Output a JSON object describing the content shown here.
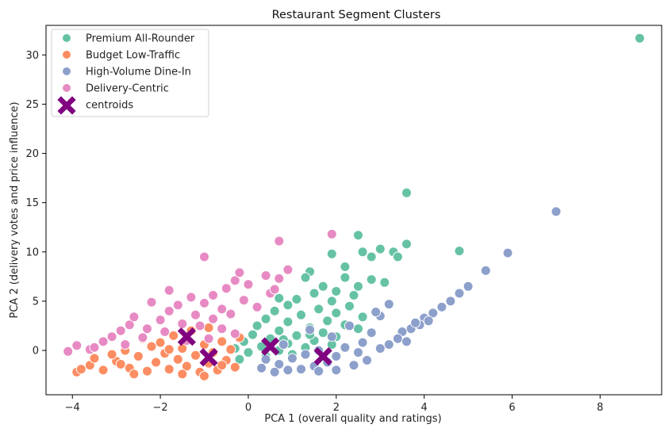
{
  "chart_data": {
    "type": "scatter",
    "title": "Restaurant Segment Clusters",
    "xlabel": "PCA 1 (overall quality and ratings)",
    "ylabel": "PCA 2 (delivery votes and price influence)",
    "xlim": [
      -4.6,
      9.4
    ],
    "ylim": [
      -4.5,
      33.0
    ],
    "x_ticks": [
      -4,
      -2,
      0,
      2,
      4,
      6,
      8
    ],
    "y_ticks": [
      0,
      5,
      10,
      15,
      20,
      25,
      30
    ],
    "grid": false,
    "legend_position": "top-left",
    "series": [
      {
        "name": "Premium All-Rounder",
        "color": "#66c2a5",
        "points": [
          [
            8.9,
            31.7
          ],
          [
            3.6,
            16.0
          ],
          [
            2.5,
            11.7
          ],
          [
            3.6,
            10.8
          ],
          [
            4.8,
            10.1
          ],
          [
            2.6,
            10.0
          ],
          [
            3.0,
            10.3
          ],
          [
            3.3,
            10.0
          ],
          [
            1.9,
            9.8
          ],
          [
            2.8,
            9.5
          ],
          [
            3.4,
            9.5
          ],
          [
            2.2,
            8.5
          ],
          [
            1.4,
            8.0
          ],
          [
            1.3,
            7.4
          ],
          [
            2.2,
            7.4
          ],
          [
            2.8,
            7.2
          ],
          [
            3.1,
            6.9
          ],
          [
            2.5,
            6.5
          ],
          [
            1.7,
            6.5
          ],
          [
            2.0,
            6.0
          ],
          [
            1.5,
            5.8
          ],
          [
            2.4,
            5.6
          ],
          [
            1.1,
            5.2
          ],
          [
            0.7,
            5.3
          ],
          [
            1.9,
            5.0
          ],
          [
            2.3,
            4.5
          ],
          [
            0.9,
            4.6
          ],
          [
            1.6,
            4.2
          ],
          [
            0.6,
            4.0
          ],
          [
            2.0,
            3.8
          ],
          [
            1.2,
            3.6
          ],
          [
            2.6,
            3.4
          ],
          [
            0.4,
            3.2
          ],
          [
            1.8,
            3.0
          ],
          [
            0.9,
            2.9
          ],
          [
            2.2,
            2.6
          ],
          [
            0.2,
            2.5
          ],
          [
            1.4,
            2.3
          ],
          [
            2.5,
            2.2
          ],
          [
            0.7,
            2.0
          ],
          [
            1.7,
            1.8
          ],
          [
            0.1,
            1.6
          ],
          [
            1.1,
            1.5
          ],
          [
            2.0,
            1.4
          ],
          [
            0.5,
            1.2
          ],
          [
            1.5,
            1.0
          ],
          [
            -0.1,
            0.9
          ],
          [
            0.9,
            0.7
          ],
          [
            1.9,
            0.6
          ],
          [
            0.3,
            0.4
          ],
          [
            1.3,
            0.3
          ],
          [
            -0.3,
            0.2
          ],
          [
            0.7,
            0.0
          ],
          [
            1.6,
            -0.1
          ],
          [
            0.0,
            -0.2
          ],
          [
            1.0,
            -0.4
          ],
          [
            0.4,
            -0.6
          ],
          [
            -0.2,
            -0.9
          ],
          [
            1.4,
            1.6
          ],
          [
            0.8,
            1.1
          ]
        ]
      },
      {
        "name": "Budget Low-Traffic",
        "color": "#fc8d62",
        "points": [
          [
            -3.9,
            -2.2
          ],
          [
            -3.6,
            -1.5
          ],
          [
            -3.3,
            -2.0
          ],
          [
            -3.0,
            -1.1
          ],
          [
            -2.7,
            -1.8
          ],
          [
            -2.5,
            -0.6
          ],
          [
            -2.3,
            -2.1
          ],
          [
            -2.1,
            -1.2
          ],
          [
            -1.9,
            -0.3
          ],
          [
            -1.8,
            -1.9
          ],
          [
            -1.6,
            -0.9
          ],
          [
            -1.5,
            0.2
          ],
          [
            -1.4,
            -1.6
          ],
          [
            -1.2,
            -0.5
          ],
          [
            -1.1,
            -2.2
          ],
          [
            -1.0,
            0.6
          ],
          [
            -0.9,
            -1.3
          ],
          [
            -0.8,
            -0.2
          ],
          [
            -0.7,
            -2.0
          ],
          [
            -0.6,
            0.9
          ],
          [
            -0.5,
            -1.0
          ],
          [
            -0.4,
            0.1
          ],
          [
            -0.3,
            -1.7
          ],
          [
            -0.2,
            1.3
          ],
          [
            -2.8,
            0.0
          ],
          [
            -3.1,
            -0.4
          ],
          [
            -2.0,
            0.8
          ],
          [
            -1.7,
            1.5
          ],
          [
            -2.4,
            1.2
          ],
          [
            -1.3,
            2.0
          ],
          [
            -0.9,
            2.3
          ],
          [
            -2.6,
            -2.4
          ],
          [
            -1.0,
            -2.6
          ],
          [
            -3.5,
            -0.8
          ],
          [
            -2.2,
            0.4
          ],
          [
            -1.5,
            -2.4
          ],
          [
            -0.6,
            -1.5
          ],
          [
            -3.8,
            -1.9
          ],
          [
            -2.9,
            -1.4
          ],
          [
            -1.8,
            0.1
          ]
        ]
      },
      {
        "name": "High-Volume Dine-In",
        "color": "#8da0cb",
        "points": [
          [
            7.0,
            14.1
          ],
          [
            5.9,
            9.9
          ],
          [
            5.4,
            8.1
          ],
          [
            5.0,
            6.5
          ],
          [
            4.8,
            5.8
          ],
          [
            4.6,
            5.0
          ],
          [
            4.4,
            4.4
          ],
          [
            4.2,
            3.8
          ],
          [
            4.0,
            3.3
          ],
          [
            3.9,
            2.6
          ],
          [
            3.7,
            2.2
          ],
          [
            3.5,
            1.9
          ],
          [
            3.4,
            1.2
          ],
          [
            3.2,
            4.7
          ],
          [
            3.0,
            3.5
          ],
          [
            3.2,
            0.6
          ],
          [
            3.0,
            0.2
          ],
          [
            2.8,
            1.8
          ],
          [
            2.6,
            0.8
          ],
          [
            2.5,
            -0.2
          ],
          [
            2.3,
            2.5
          ],
          [
            2.2,
            0.3
          ],
          [
            2.0,
            -0.6
          ],
          [
            1.9,
            1.4
          ],
          [
            1.8,
            -1.2
          ],
          [
            1.6,
            0.0
          ],
          [
            1.5,
            -1.6
          ],
          [
            1.4,
            2.1
          ],
          [
            1.3,
            -0.4
          ],
          [
            1.2,
            -1.9
          ],
          [
            1.0,
            -0.8
          ],
          [
            0.9,
            -2.0
          ],
          [
            0.8,
            0.6
          ],
          [
            0.7,
            -1.4
          ],
          [
            0.6,
            -2.2
          ],
          [
            0.4,
            -0.9
          ],
          [
            0.3,
            -1.8
          ],
          [
            2.7,
            -1.0
          ],
          [
            2.4,
            -1.5
          ],
          [
            3.6,
            0.9
          ],
          [
            2.0,
            -2.0
          ],
          [
            1.6,
            -2.1
          ],
          [
            3.8,
            2.8
          ],
          [
            4.1,
            3.0
          ],
          [
            2.9,
            3.9
          ]
        ]
      },
      {
        "name": "Delivery-Centric",
        "color": "#e78ac3",
        "points": [
          [
            -4.1,
            -0.1
          ],
          [
            -3.9,
            0.5
          ],
          [
            -3.6,
            0.1
          ],
          [
            -3.3,
            0.9
          ],
          [
            -3.1,
            1.4
          ],
          [
            -2.9,
            2.0
          ],
          [
            -2.7,
            2.6
          ],
          [
            -2.6,
            3.4
          ],
          [
            -2.3,
            2.2
          ],
          [
            -2.2,
            4.9
          ],
          [
            -2.0,
            3.1
          ],
          [
            -1.8,
            4.0
          ],
          [
            -1.8,
            6.1
          ],
          [
            -1.6,
            4.6
          ],
          [
            -1.5,
            2.7
          ],
          [
            -1.3,
            5.4
          ],
          [
            -1.2,
            3.6
          ],
          [
            -1.0,
            9.5
          ],
          [
            -1.0,
            4.8
          ],
          [
            -0.8,
            3.2
          ],
          [
            -0.8,
            5.6
          ],
          [
            -0.6,
            4.2
          ],
          [
            -0.5,
            6.3
          ],
          [
            -0.4,
            3.7
          ],
          [
            -0.3,
            7.1
          ],
          [
            -0.2,
            7.9
          ],
          [
            -0.1,
            5.1
          ],
          [
            0.0,
            6.7
          ],
          [
            0.2,
            4.4
          ],
          [
            0.4,
            7.6
          ],
          [
            0.5,
            5.8
          ],
          [
            0.6,
            6.2
          ],
          [
            0.7,
            11.1
          ],
          [
            0.7,
            7.3
          ],
          [
            0.9,
            8.2
          ],
          [
            1.9,
            11.8
          ],
          [
            -2.4,
            1.3
          ],
          [
            -1.9,
            1.9
          ],
          [
            -1.1,
            2.5
          ],
          [
            -0.6,
            2.2
          ],
          [
            -0.3,
            1.7
          ],
          [
            -2.8,
            0.6
          ],
          [
            -1.4,
            1.0
          ],
          [
            -0.9,
            1.2
          ],
          [
            -3.5,
            0.3
          ]
        ]
      }
    ],
    "centroids": {
      "name": "centroids",
      "color": "#800080",
      "points": [
        [
          -1.4,
          1.4
        ],
        [
          -0.9,
          -0.7
        ],
        [
          0.5,
          0.4
        ],
        [
          1.7,
          -0.6
        ]
      ]
    }
  }
}
